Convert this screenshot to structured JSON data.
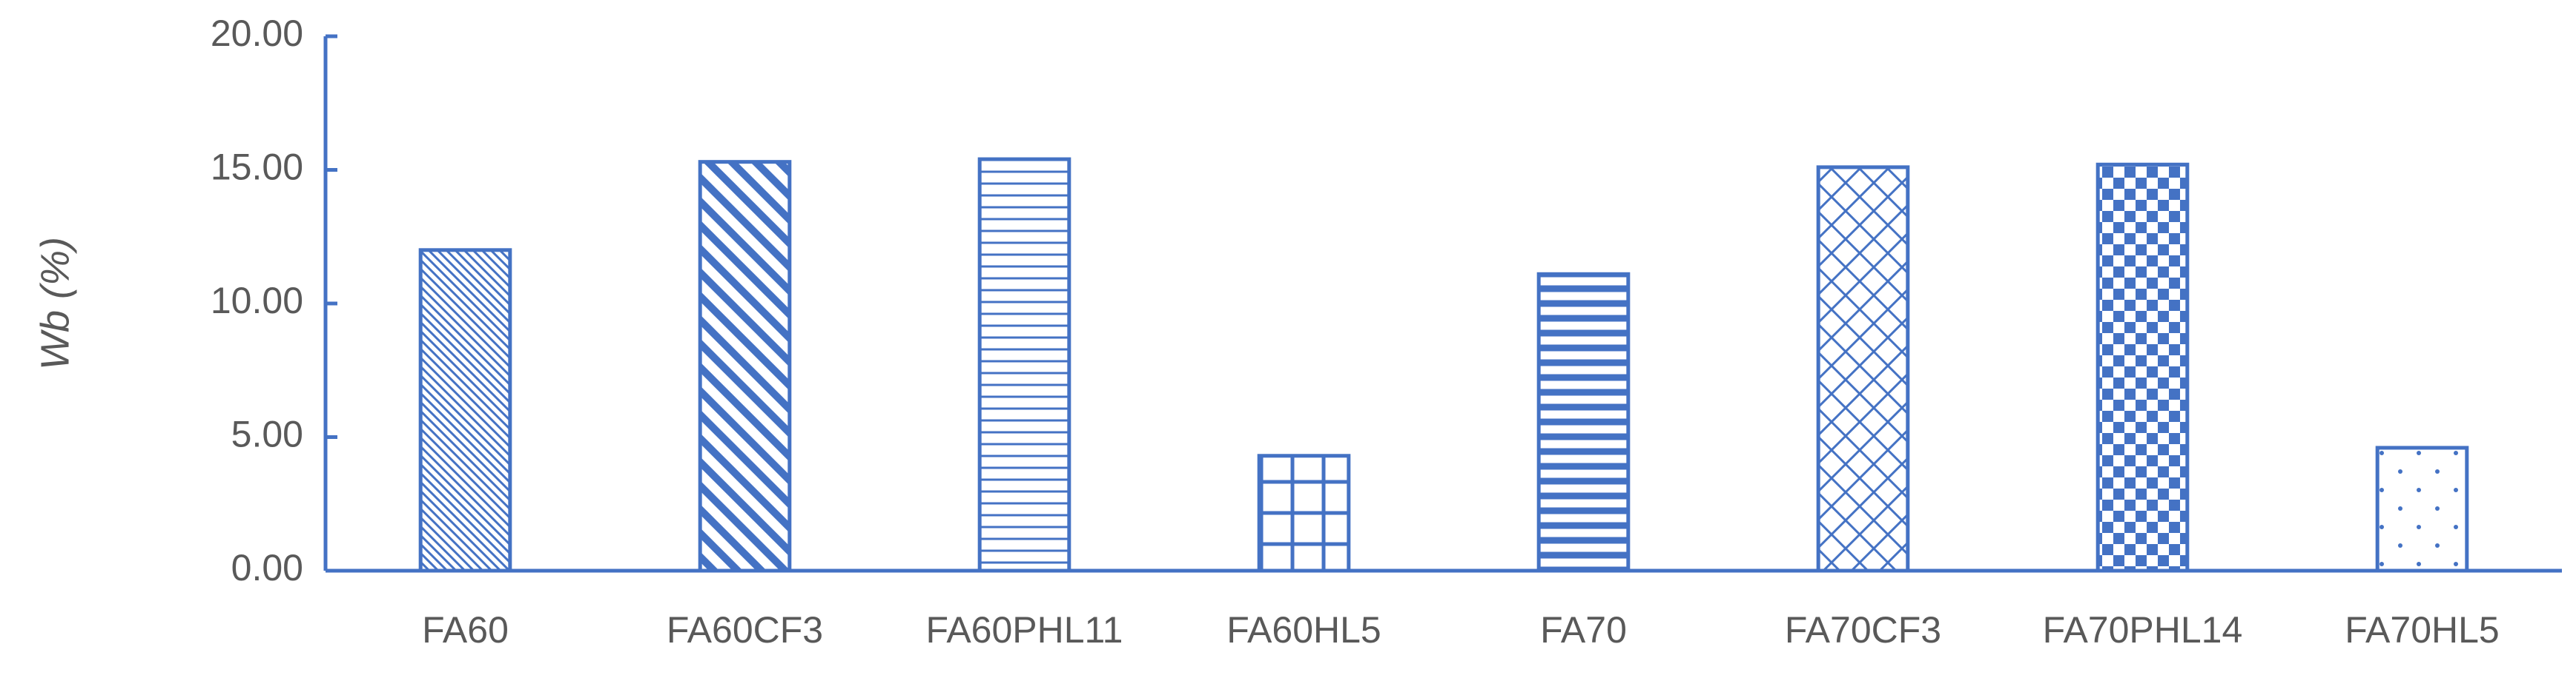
{
  "chart_data": {
    "type": "bar",
    "y_label": "Wb (%)",
    "categories": [
      "FA60",
      "FA60CF3",
      "FA60PHL11",
      "FA60HL5",
      "FA70",
      "FA70CF3",
      "FA70PHL14",
      "FA70HL5"
    ],
    "values": [
      12.0,
      15.3,
      15.4,
      4.3,
      11.1,
      15.1,
      15.2,
      4.6
    ],
    "color": "#4472c4",
    "ylim": [
      0,
      20
    ],
    "yticks": [
      {
        "value": 0,
        "label": "0.00"
      },
      {
        "value": 5,
        "label": "5.00"
      },
      {
        "value": 10,
        "label": "10.00"
      },
      {
        "value": 15,
        "label": "15.00"
      },
      {
        "value": 20,
        "label": "20.00"
      }
    ]
  }
}
